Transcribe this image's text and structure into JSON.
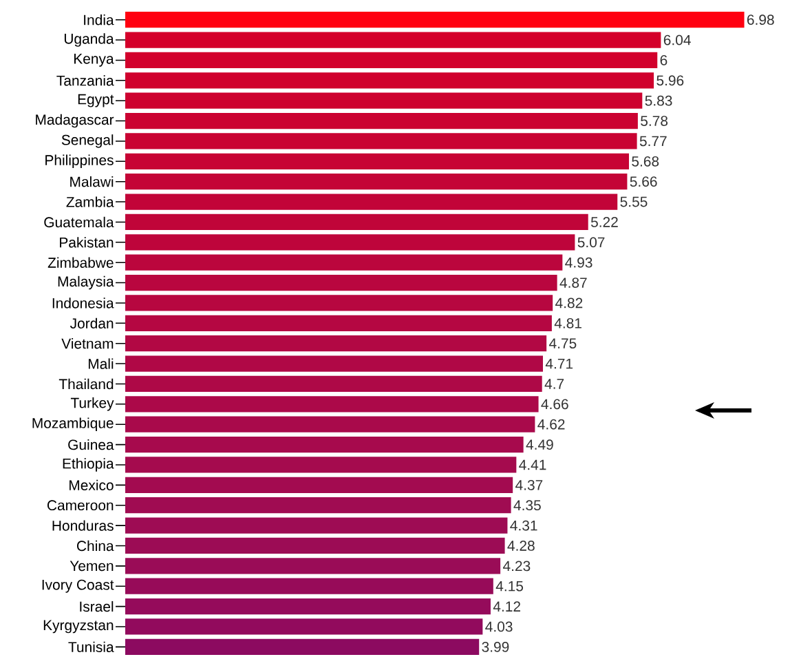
{
  "chart_data": {
    "type": "bar",
    "orientation": "horizontal",
    "relative": false,
    "data_labels": true,
    "categories": [
      "India",
      "Uganda",
      "Kenya",
      "Tanzania",
      "Egypt",
      "Madagascar",
      "Senegal",
      "Philippines",
      "Malawi",
      "Zambia",
      "Guatemala",
      "Pakistan",
      "Zimbabwe",
      "Malaysia",
      "Indonesia",
      "Jordan",
      "Vietnam",
      "Mali",
      "Thailand",
      "Turkey",
      "Mozambique",
      "Guinea",
      "Ethiopia",
      "Mexico",
      "Cameroon",
      "Honduras",
      "China",
      "Yemen",
      "Ivory Coast",
      "Israel",
      "Kyrgyzstan",
      "Tunisia"
    ],
    "values": [
      6.98,
      6.04,
      6,
      5.96,
      5.83,
      5.78,
      5.77,
      5.68,
      5.66,
      5.55,
      5.22,
      5.07,
      4.93,
      4.87,
      4.82,
      4.81,
      4.75,
      4.71,
      4.7,
      4.66,
      4.62,
      4.49,
      4.41,
      4.37,
      4.35,
      4.31,
      4.28,
      4.23,
      4.15,
      4.12,
      4.03,
      3.99
    ],
    "colors": [
      "#ff0010",
      "#d4002a",
      "#d2012c",
      "#d0012d",
      "#cd022f",
      "#cb0231",
      "#c90332",
      "#c70334",
      "#c40436",
      "#c20438",
      "#c00539",
      "#be053b",
      "#bb063d",
      "#b9063f",
      "#b70740",
      "#b50742",
      "#b20844",
      "#b00846",
      "#ae0947",
      "#ac0949",
      "#a90a4b",
      "#a70a4d",
      "#a50b4e",
      "#a30b50",
      "#a00c52",
      "#9e0c54",
      "#9c0c55",
      "#9a0c57",
      "#970b59",
      "#950b5b",
      "#920a5d",
      "#8c0a60"
    ]
  }
}
